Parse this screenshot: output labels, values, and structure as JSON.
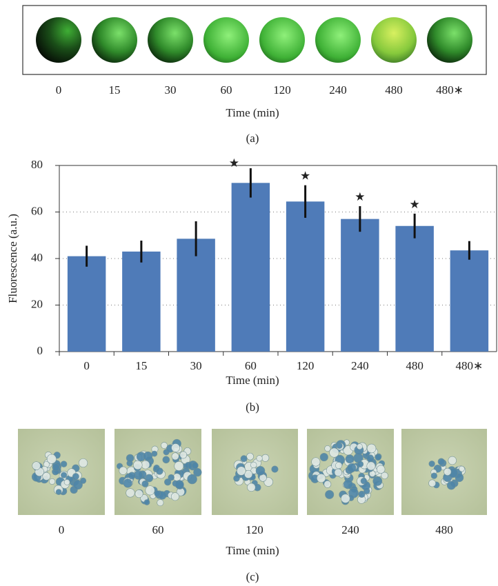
{
  "panel_a": {
    "labels": [
      "0",
      "15",
      "30",
      "60",
      "120",
      "240",
      "480",
      "480∗"
    ],
    "xlabel": "Time (min)",
    "caption": "(a)"
  },
  "chart_data": {
    "type": "bar",
    "ylabel": "Fluorescence (a.u.)",
    "xlabel": "Time (min)",
    "caption": "(b)",
    "categories": [
      "0",
      "15",
      "30",
      "60",
      "120",
      "240",
      "480",
      "480∗"
    ],
    "values": [
      41,
      43,
      48.5,
      72.5,
      64.5,
      57,
      54,
      43.5
    ],
    "errors": [
      4.5,
      4.7,
      7.5,
      6.3,
      7,
      5.5,
      5.3,
      4
    ],
    "significant": [
      false,
      false,
      false,
      true,
      true,
      true,
      true,
      false
    ],
    "significance_marker": "★",
    "color": "#4f7bb8",
    "ylim": [
      0,
      80
    ],
    "yticks": [
      0,
      20,
      40,
      60,
      80
    ],
    "grid": true
  },
  "panel_c": {
    "labels": [
      "0",
      "60",
      "120",
      "240",
      "480"
    ],
    "xlabel": "Time (min)",
    "caption": "(c)"
  }
}
